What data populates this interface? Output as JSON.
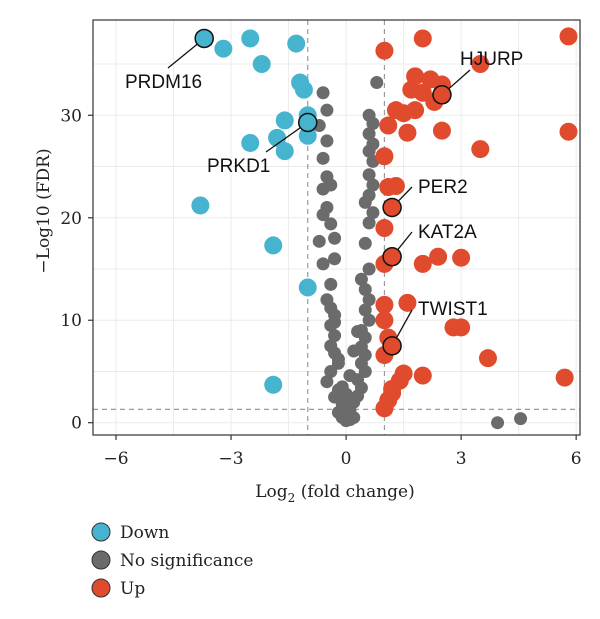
{
  "chart_data": {
    "type": "scatter",
    "title": "",
    "xlabel": "Log",
    "xlabel_sub": "2",
    "xlabel_suffix": " (fold change)",
    "ylabel": "−Log10 (FDR)",
    "xlim": [
      -6.6,
      6.1
    ],
    "ylim": [
      -1.2,
      39.3
    ],
    "x_ticks": [
      -6,
      -3,
      0,
      3,
      6
    ],
    "x_tick_labels": [
      "−6",
      "−3",
      "0",
      "3",
      "6"
    ],
    "y_ticks": [
      0,
      10,
      20,
      30
    ],
    "y_tick_labels": [
      "0",
      "10",
      "20",
      "30"
    ],
    "grid": true,
    "thresholds": {
      "x": [
        -1,
        1
      ],
      "y": 1.3
    },
    "legend_position": "bottom-left",
    "colors": {
      "Down": "#47b4cf",
      "No significance": "#6b6b6b",
      "Up": "#e04b2e"
    },
    "series": [
      {
        "name": "Down",
        "points": [
          [
            -3.7,
            37.5
          ],
          [
            -3.2,
            36.5
          ],
          [
            -2.5,
            37.5
          ],
          [
            -2.2,
            35.0
          ],
          [
            -1.3,
            37.0
          ],
          [
            -1.2,
            33.2
          ],
          [
            -1.1,
            32.5
          ],
          [
            -1.6,
            29.5
          ],
          [
            -1.0,
            30.0
          ],
          [
            -1.8,
            27.8
          ],
          [
            -2.5,
            27.3
          ],
          [
            -1.6,
            26.5
          ],
          [
            -1.0,
            28.0
          ],
          [
            -3.8,
            21.2
          ],
          [
            -1.9,
            17.3
          ],
          [
            -1.0,
            13.2
          ],
          [
            -1.9,
            3.7
          ]
        ]
      },
      {
        "name": "No significance",
        "points": [
          [
            -0.6,
            32.2
          ],
          [
            -0.5,
            30.5
          ],
          [
            -0.7,
            29.0
          ],
          [
            -0.5,
            27.5
          ],
          [
            -0.6,
            25.8
          ],
          [
            -0.5,
            24.0
          ],
          [
            -0.4,
            23.2
          ],
          [
            -0.6,
            22.8
          ],
          [
            -0.5,
            21.0
          ],
          [
            -0.6,
            20.3
          ],
          [
            -0.4,
            19.4
          ],
          [
            -0.3,
            18.0
          ],
          [
            -0.7,
            17.7
          ],
          [
            -0.3,
            16.0
          ],
          [
            -0.6,
            15.5
          ],
          [
            -0.4,
            13.5
          ],
          [
            -0.5,
            12.0
          ],
          [
            -0.4,
            11.2
          ],
          [
            -0.3,
            10.5
          ],
          [
            -0.4,
            9.5
          ],
          [
            -0.3,
            8.5
          ],
          [
            -0.4,
            7.5
          ],
          [
            -0.3,
            6.8
          ],
          [
            -0.2,
            5.8
          ],
          [
            -0.4,
            5.0
          ],
          [
            -0.5,
            4.0
          ],
          [
            -0.2,
            3.2
          ],
          [
            -0.3,
            2.5
          ],
          [
            -0.1,
            1.8
          ],
          [
            -0.2,
            1.0
          ],
          [
            -0.1,
            0.5
          ],
          [
            0.0,
            0.2
          ],
          [
            0.1,
            0.3
          ],
          [
            0.2,
            0.5
          ],
          [
            0.1,
            1.2
          ],
          [
            0.2,
            2.0
          ],
          [
            0.3,
            2.6
          ],
          [
            0.4,
            3.4
          ],
          [
            0.3,
            4.2
          ],
          [
            0.5,
            5.0
          ],
          [
            0.4,
            5.8
          ],
          [
            0.5,
            6.6
          ],
          [
            0.4,
            7.4
          ],
          [
            0.5,
            8.3
          ],
          [
            0.4,
            9.0
          ],
          [
            0.6,
            10.0
          ],
          [
            0.5,
            11.0
          ],
          [
            0.6,
            12.0
          ],
          [
            0.5,
            13.0
          ],
          [
            0.4,
            14.0
          ],
          [
            0.6,
            15.0
          ],
          [
            0.5,
            17.5
          ],
          [
            0.6,
            19.5
          ],
          [
            0.7,
            20.5
          ],
          [
            0.5,
            21.5
          ],
          [
            0.6,
            22.2
          ],
          [
            0.7,
            23.2
          ],
          [
            0.6,
            24.2
          ],
          [
            0.7,
            25.5
          ],
          [
            0.6,
            26.5
          ],
          [
            0.7,
            27.2
          ],
          [
            0.6,
            28.2
          ],
          [
            0.7,
            29.2
          ],
          [
            0.6,
            30.0
          ],
          [
            0.8,
            33.2
          ],
          [
            -0.1,
            3.5
          ],
          [
            0.0,
            2.8
          ],
          [
            0.1,
            4.6
          ],
          [
            -0.2,
            6.2
          ],
          [
            0.2,
            7.0
          ],
          [
            -0.3,
            9.8
          ],
          [
            0.3,
            8.9
          ],
          [
            3.95,
            0.0
          ],
          [
            4.55,
            0.4
          ]
        ]
      },
      {
        "name": "Up",
        "points": [
          [
            1.0,
            36.3
          ],
          [
            2.0,
            37.5
          ],
          [
            5.8,
            37.7
          ],
          [
            3.5,
            35.0
          ],
          [
            1.8,
            33.8
          ],
          [
            2.2,
            33.5
          ],
          [
            2.5,
            33.0
          ],
          [
            1.7,
            32.5
          ],
          [
            2.0,
            32.2
          ],
          [
            2.3,
            31.3
          ],
          [
            1.3,
            30.5
          ],
          [
            1.5,
            30.2
          ],
          [
            1.8,
            30.5
          ],
          [
            1.1,
            29.0
          ],
          [
            1.6,
            28.3
          ],
          [
            2.5,
            28.5
          ],
          [
            5.8,
            28.4
          ],
          [
            3.5,
            26.7
          ],
          [
            1.0,
            26.0
          ],
          [
            1.1,
            23.0
          ],
          [
            1.3,
            23.1
          ],
          [
            1.0,
            19.0
          ],
          [
            2.4,
            16.2
          ],
          [
            2.0,
            15.5
          ],
          [
            3.0,
            16.1
          ],
          [
            1.0,
            15.5
          ],
          [
            1.0,
            11.5
          ],
          [
            1.6,
            11.7
          ],
          [
            1.0,
            10.0
          ],
          [
            2.8,
            9.3
          ],
          [
            3.0,
            9.3
          ],
          [
            1.1,
            8.3
          ],
          [
            1.0,
            6.6
          ],
          [
            3.7,
            6.3
          ],
          [
            1.5,
            4.8
          ],
          [
            2.0,
            4.6
          ],
          [
            1.4,
            4.1
          ],
          [
            1.2,
            3.3
          ],
          [
            5.7,
            4.4
          ],
          [
            1.1,
            2.2
          ],
          [
            1.0,
            1.4
          ],
          [
            1.2,
            2.9
          ]
        ]
      }
    ],
    "annotations": [
      {
        "label": "PRDM16",
        "x": -3.7,
        "y": 37.5,
        "color": "#47b4cf"
      },
      {
        "label": "PRKD1",
        "x": -1.0,
        "y": 29.3,
        "color": "#47b4cf"
      },
      {
        "label": "HJURP",
        "x": 2.5,
        "y": 32.0,
        "color": "#e04b2e"
      },
      {
        "label": "PER2",
        "x": 1.2,
        "y": 21.0,
        "color": "#e04b2e"
      },
      {
        "label": "KAT2A",
        "x": 1.2,
        "y": 16.2,
        "color": "#e04b2e"
      },
      {
        "label": "TWIST1",
        "x": 1.2,
        "y": 7.5,
        "color": "#e04b2e"
      }
    ]
  }
}
